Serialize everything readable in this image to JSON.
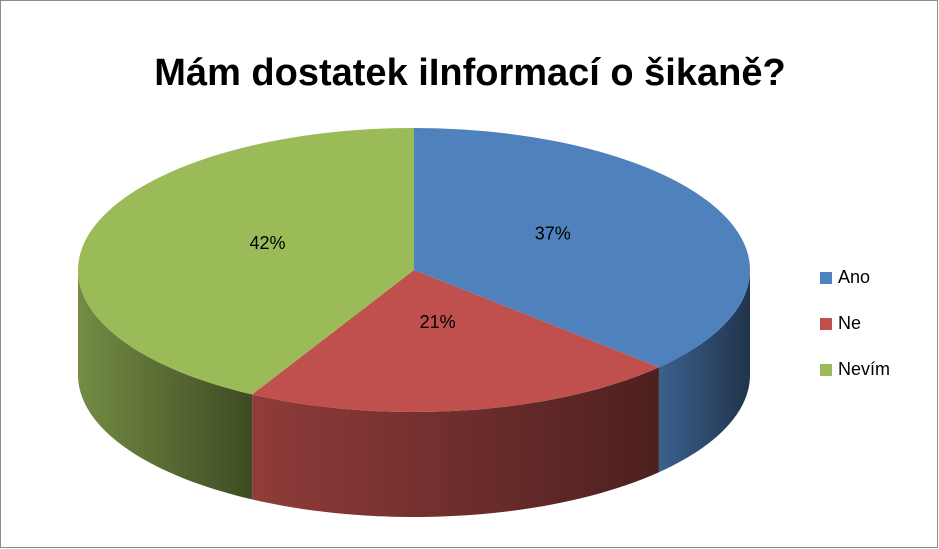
{
  "chart_data": {
    "type": "pie",
    "title": "Mám dostatek iInformací o šikaně?",
    "categories": [
      "Ano",
      "Ne",
      "Nevím"
    ],
    "values": [
      37,
      21,
      42
    ],
    "value_labels": [
      "37%",
      "21%",
      "42%"
    ],
    "colors": [
      "#4f81bd",
      "#c0504d",
      "#9bbb59"
    ],
    "legend": "right"
  }
}
